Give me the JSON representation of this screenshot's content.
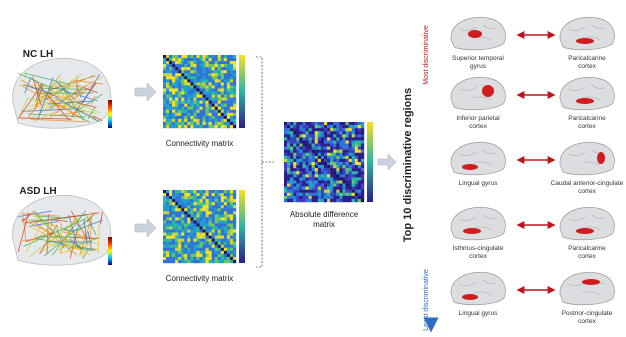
{
  "labels": {
    "nc": "NC LH",
    "asd": "ASD LH"
  },
  "matrices": [
    {
      "caption": [
        "Connectivity matrix"
      ]
    },
    {
      "caption": [
        "Connectivity matrix"
      ]
    },
    {
      "caption": [
        "Absolute difference",
        "matrix"
      ]
    }
  ],
  "regions": {
    "title": "Top 10 discriminative regions",
    "top_label": "Most discriminative",
    "bottom_label": "Least discriminative",
    "pairs": [
      {
        "left": [
          "Superior temporal",
          "gyrus"
        ],
        "right": [
          "Paricalcarine",
          "cortex"
        ]
      },
      {
        "left": [
          "Inferior parietal",
          "cortex"
        ],
        "right": [
          "Paricalcarine",
          "cortex"
        ]
      },
      {
        "left": [
          "Lingual gyrus"
        ],
        "right": [
          "Caudal anterior-cingulate",
          "cortex"
        ]
      },
      {
        "left": [
          "Isthmus-cingulate",
          "cortex"
        ],
        "right": [
          "Paricalcarine",
          "cortex"
        ]
      },
      {
        "left": [
          "Lingual gyrus"
        ],
        "right": [
          "Postrior-cingulate",
          "cortex"
        ]
      }
    ]
  }
}
